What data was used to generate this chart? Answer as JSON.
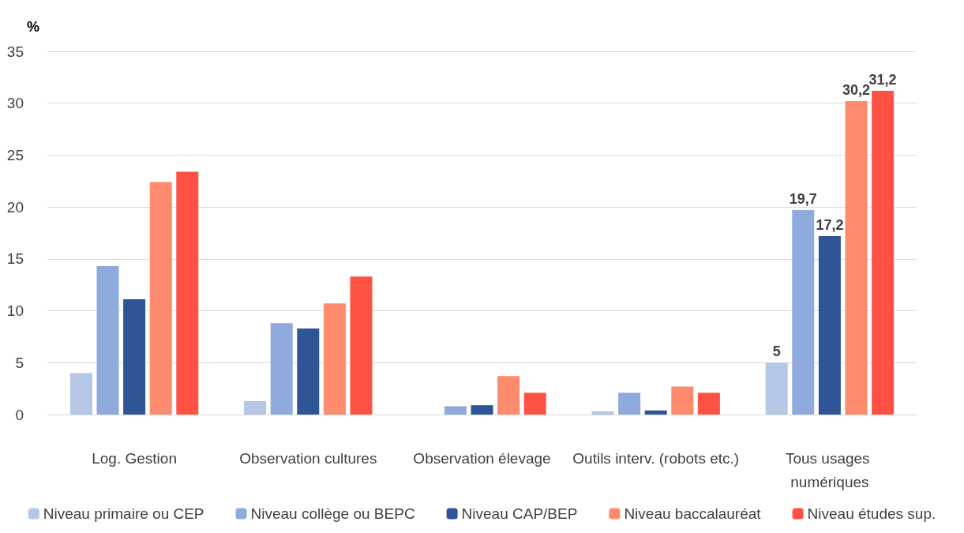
{
  "chart_data": {
    "type": "bar",
    "ylabel": "%",
    "categories": [
      "Log. Gestion",
      "Observation cultures",
      "Observation élevage",
      "Outils interv. (robots etc.)",
      "Tous usages numériques"
    ],
    "series": [
      {
        "name": "Niveau primaire ou CEP",
        "color": "#b4c7e7",
        "values": [
          4.0,
          1.3,
          0,
          0.3,
          5
        ],
        "value_labels": [
          null,
          null,
          null,
          null,
          "5"
        ]
      },
      {
        "name": "Niveau collège ou BEPC",
        "color": "#8faadc",
        "values": [
          14.3,
          8.8,
          0.8,
          2.1,
          19.7
        ],
        "value_labels": [
          null,
          null,
          null,
          null,
          "19,7"
        ]
      },
      {
        "name": "Niveau CAP/BEP",
        "color": "#2f5597",
        "values": [
          11.1,
          8.3,
          0.9,
          0.4,
          17.2
        ],
        "value_labels": [
          null,
          null,
          null,
          null,
          "17,2"
        ]
      },
      {
        "name": "Niveau baccalauréat",
        "color": "#ff8b6e",
        "values": [
          22.4,
          10.7,
          3.7,
          2.7,
          30.2
        ],
        "value_labels": [
          null,
          null,
          null,
          null,
          "30,2"
        ]
      },
      {
        "name": "Niveau études sup.",
        "color": "#ff5244",
        "values": [
          23.4,
          13.3,
          2.1,
          2.1,
          31.2
        ],
        "value_labels": [
          null,
          null,
          null,
          null,
          "31,2"
        ]
      }
    ],
    "ylim": [
      0,
      35
    ],
    "yticks": [
      0,
      5,
      10,
      15,
      20,
      25,
      30,
      35
    ],
    "grid": "y",
    "legend": "bottom"
  }
}
